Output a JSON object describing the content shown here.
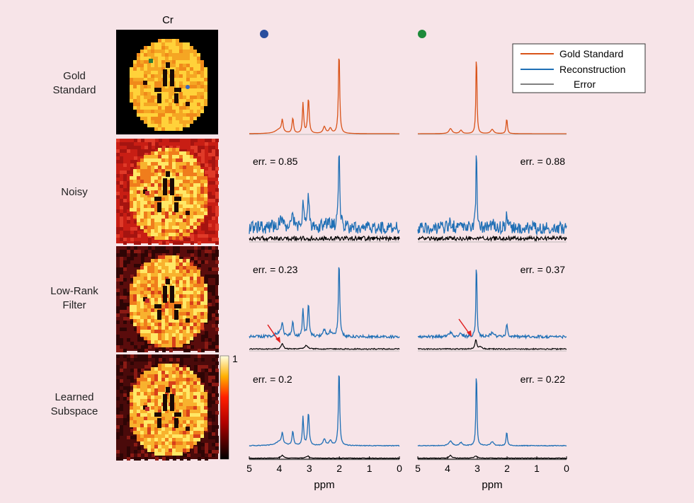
{
  "column_title": "Cr",
  "rows": [
    {
      "label": "Gold\nStandard",
      "err_left": "",
      "err_right": ""
    },
    {
      "label": "Noisy",
      "err_left": "err. = 0.85",
      "err_right": "err. = 0.88"
    },
    {
      "label": "Low-Rank\nFilter",
      "err_left": "err. = 0.23",
      "err_right": "err. = 0.37"
    },
    {
      "label": "Learned\nSubspace",
      "err_left": "err. = 0.2",
      "err_right": "err. = 0.22"
    }
  ],
  "legend": [
    "Gold Standard",
    "Reconstruction",
    "Error"
  ],
  "colors": {
    "gold": "#d95319",
    "recon": "#1f6fb5",
    "error": "#808080",
    "error_trace": "#000000",
    "marker_blue": "#2a4f9e",
    "marker_green": "#1e8a3a",
    "arrow": "#e02020"
  },
  "colorbar": {
    "max_label": "1"
  },
  "xaxis": {
    "label": "ppm",
    "ticks": [
      "5",
      "4",
      "3",
      "2",
      "1",
      "0"
    ]
  }
}
